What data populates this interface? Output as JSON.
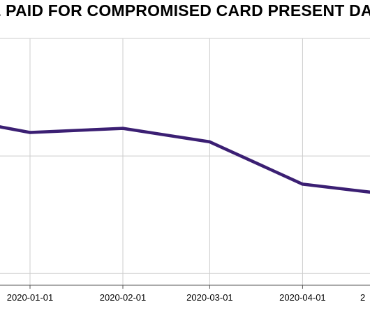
{
  "chart_data": {
    "type": "line",
    "title": "E PAID FOR COMPROMISED CARD PRESENT DA",
    "x_tick_labels": [
      "2020-01-01",
      "2020-02-01",
      "2020-03-01",
      "2020-04-01",
      "2"
    ],
    "x": [
      "2019-12-07",
      "2020-01-01",
      "2020-02-01",
      "2020-03-01",
      "2020-04-01",
      "2020-05-01"
    ],
    "series": [
      {
        "values": [
          3.2,
          2.0,
          2.35,
          1.2,
          -2.4,
          -3.3
        ]
      }
    ],
    "ylim": [
      -11,
      10
    ],
    "y_gridlines": [
      -10,
      0,
      10
    ],
    "grid": true,
    "legend": "none",
    "colors": {
      "line": "#3b1f73",
      "grid": "#cccccc",
      "axis": "#555555"
    }
  }
}
